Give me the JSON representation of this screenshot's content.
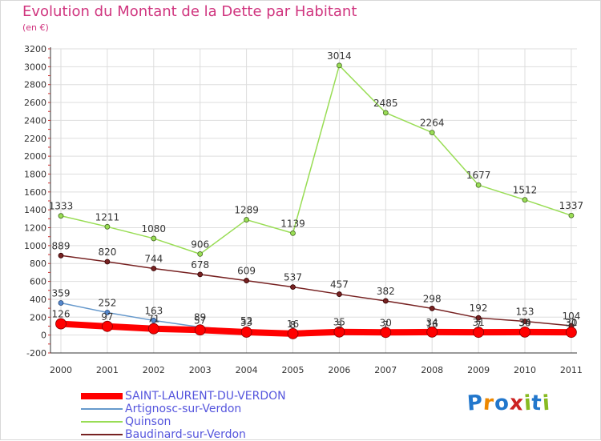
{
  "title": "Evolution du Montant de la Dette par Habitant",
  "subtitle": "(en €)",
  "logo_text": "Proxiti",
  "chart_data": {
    "type": "line",
    "x": [
      "2000",
      "2001",
      "2002",
      "2003",
      "2004",
      "2005",
      "2006",
      "2007",
      "2008",
      "2009",
      "2010",
      "2011"
    ],
    "ylim": [
      -200,
      3200
    ],
    "yticks": [
      -200,
      0,
      200,
      400,
      600,
      800,
      1000,
      1200,
      1400,
      1600,
      1800,
      2000,
      2200,
      2400,
      2600,
      2800,
      3000,
      3200
    ],
    "grid": true,
    "legend_position": "bottom-left",
    "series": [
      {
        "name": "SAINT-LAURENT-DU-VERDON",
        "color": "#ff0000",
        "values": [
          126,
          97,
          71,
          57,
          33,
          16,
          35,
          30,
          34,
          31,
          34,
          31
        ],
        "labels": [
          "126",
          "97",
          "71",
          "57",
          "33",
          "16",
          "35",
          "30",
          "34",
          "31",
          "34",
          "31"
        ]
      },
      {
        "name": "Artignosc-sur-Verdon",
        "color": "#6699cc",
        "values": [
          359,
          252,
          163,
          89,
          52,
          8,
          3,
          7,
          16,
          7,
          30,
          30
        ],
        "labels": [
          "359",
          "252",
          "163",
          "89",
          "52",
          "8",
          "3",
          "7",
          "16",
          "7",
          "30",
          "30"
        ]
      },
      {
        "name": "Quinson",
        "color": "#99dd55",
        "values": [
          1333,
          1211,
          1080,
          906,
          1289,
          1139,
          3014,
          2485,
          2264,
          1677,
          1512,
          1337
        ],
        "labels": [
          "1333",
          "1211",
          "1080",
          "906",
          "1289",
          "1139",
          "3014",
          "2485",
          "2264",
          "1677",
          "1512",
          "1337"
        ]
      },
      {
        "name": "Baudinard-sur-Verdon",
        "color": "#772222",
        "values": [
          889,
          820,
          744,
          678,
          609,
          537,
          457,
          382,
          298,
          192,
          153,
          104
        ],
        "labels": [
          "889",
          "820",
          "744",
          "678",
          "609",
          "537",
          "457",
          "382",
          "298",
          "192",
          "153",
          "104"
        ]
      }
    ]
  }
}
